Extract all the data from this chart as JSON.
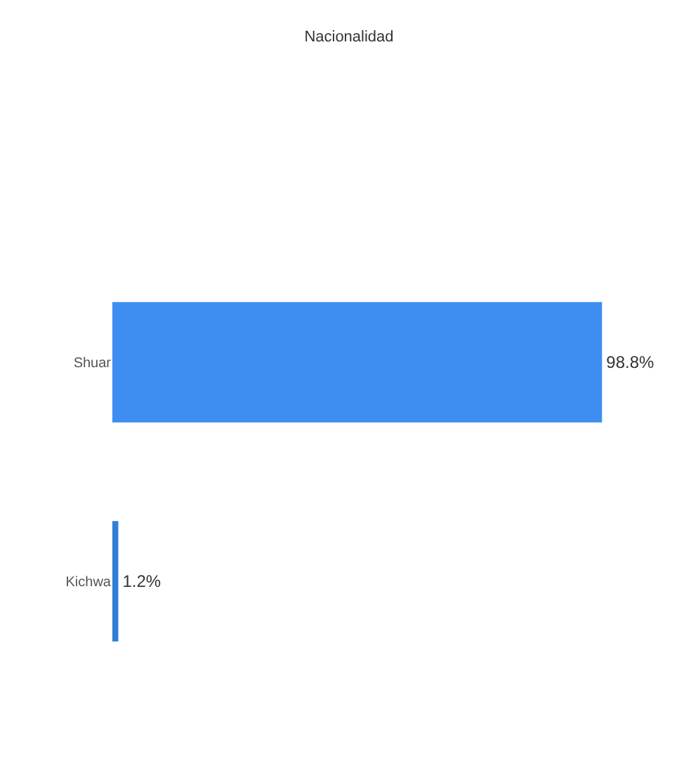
{
  "chart_data": {
    "type": "bar",
    "title": "Nacionalidad",
    "orientation": "horizontal",
    "categories": [
      "Shuar",
      "Kichwa"
    ],
    "values": [
      98.8,
      1.2
    ],
    "value_labels": [
      "98.8%",
      "1.2%"
    ],
    "colors": [
      "#3d8ef0",
      "#2f7fd8"
    ],
    "legend": false
  }
}
